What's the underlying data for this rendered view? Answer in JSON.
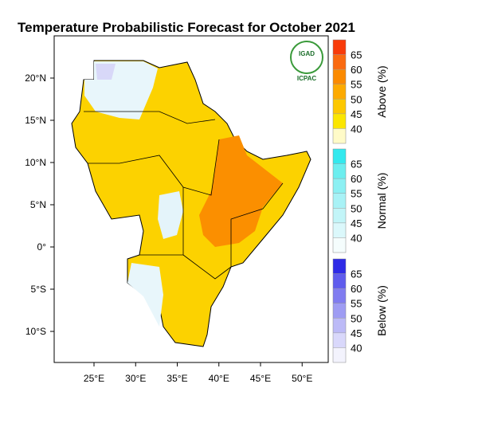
{
  "title": "Temperature Probabilistic Forecast for October 2021",
  "logo": {
    "name": "IGAD",
    "org": "ICPAC"
  },
  "map": {
    "lon_ticks": [
      {
        "value": 25,
        "label": "25°E"
      },
      {
        "value": 30,
        "label": "30°E"
      },
      {
        "value": 35,
        "label": "35°E"
      },
      {
        "value": 40,
        "label": "40°E"
      },
      {
        "value": 45,
        "label": "45°E"
      },
      {
        "value": 50,
        "label": "50°E"
      }
    ],
    "lat_ticks": [
      {
        "value": 20,
        "label": "20°N"
      },
      {
        "value": 15,
        "label": "15°N"
      },
      {
        "value": 10,
        "label": "10°N"
      },
      {
        "value": 5,
        "label": "5°N"
      },
      {
        "value": 0,
        "label": "0°"
      },
      {
        "value": -5,
        "label": "5°S"
      },
      {
        "value": -10,
        "label": "10°S"
      }
    ]
  },
  "legends": [
    {
      "title": "Above (%)",
      "ticks": [
        40,
        45,
        50,
        55,
        60,
        65
      ],
      "colors": [
        "#fffbc8",
        "#fbe600",
        "#fdc800",
        "#fdaa00",
        "#fb8a00",
        "#fa6a10",
        "#f83b0a"
      ]
    },
    {
      "title": "Normal (%)",
      "ticks": [
        40,
        45,
        50,
        55,
        60,
        65
      ],
      "colors": [
        "#f5fdfd",
        "#dbf8fb",
        "#c2f5f8",
        "#a8f2f6",
        "#8cf0f3",
        "#6ceeef",
        "#33e9ee"
      ]
    },
    {
      "title": "Below (%)",
      "ticks": [
        40,
        45,
        50,
        55,
        60,
        65
      ],
      "colors": [
        "#f3f3fd",
        "#d9d8fb",
        "#bcbaf7",
        "#9e9cf3",
        "#807cf0",
        "#5f5ced",
        "#2e2ae6"
      ]
    }
  ]
}
